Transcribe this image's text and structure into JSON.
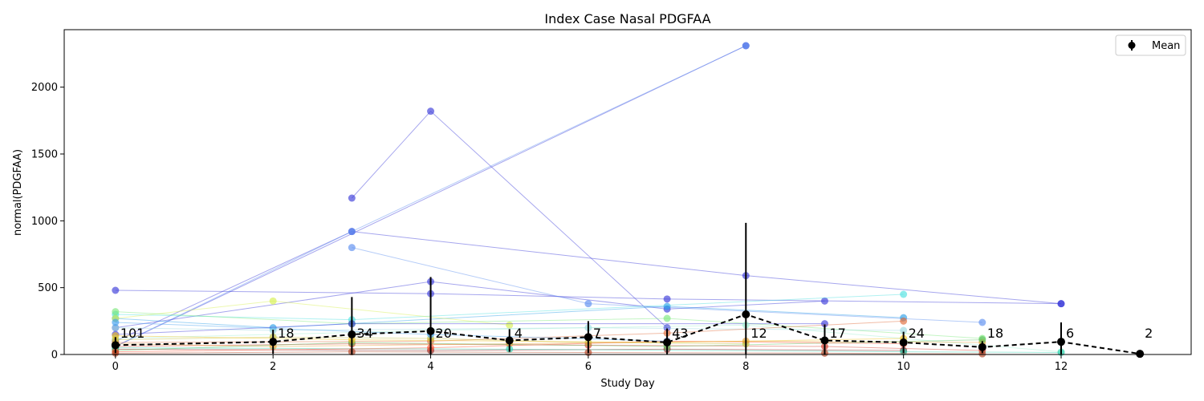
{
  "chart_data": {
    "type": "line",
    "title": "Index Case Nasal PDGFAA",
    "xlabel": "Study Day",
    "ylabel": "normal(PDGFAA)",
    "xlim": [
      -0.65,
      13.65
    ],
    "ylim": [
      0,
      2430
    ],
    "xticks": [
      0,
      2,
      4,
      6,
      8,
      10,
      12
    ],
    "yticks": [
      0,
      500,
      1000,
      1500,
      2000
    ],
    "legend": {
      "position": "top-right",
      "entries": [
        "Mean"
      ]
    },
    "mean": {
      "name": "Mean",
      "x": [
        0,
        2,
        3,
        4,
        5,
        6,
        7,
        8,
        9,
        10,
        11,
        12,
        13
      ],
      "y": [
        70,
        95,
        150,
        175,
        105,
        130,
        90,
        300,
        105,
        90,
        55,
        95,
        5
      ],
      "err": [
        60,
        90,
        280,
        405,
        85,
        120,
        105,
        685,
        120,
        80,
        45,
        145,
        5
      ],
      "counts": [
        "101",
        "18",
        "34",
        "20",
        "4",
        "7",
        "43",
        "12",
        "17",
        "24",
        "18",
        "6",
        "2"
      ]
    },
    "subjects": [
      {
        "color": "#3a3ad9",
        "points": [
          [
            0,
            60
          ],
          [
            8,
            2310
          ]
        ]
      },
      {
        "color": "#3a3ad9",
        "points": [
          [
            0,
            100
          ],
          [
            3,
            920
          ],
          [
            8,
            590
          ],
          [
            12,
            380
          ]
        ]
      },
      {
        "color": "#3a3ad9",
        "points": [
          [
            3,
            1170
          ],
          [
            4,
            1820
          ],
          [
            7,
            200
          ]
        ]
      },
      {
        "color": "#3a3ad9",
        "points": [
          [
            0,
            480
          ],
          [
            4,
            455
          ],
          [
            7,
            415
          ],
          [
            12,
            380
          ]
        ]
      },
      {
        "color": "#3a3ad9",
        "points": [
          [
            0,
            200
          ],
          [
            4,
            545
          ],
          [
            7,
            340
          ],
          [
            9,
            400
          ]
        ]
      },
      {
        "color": "#5a8ef0",
        "points": [
          [
            0,
            60
          ],
          [
            3,
            920
          ],
          [
            8,
            2310
          ]
        ]
      },
      {
        "color": "#5a8ef0",
        "points": [
          [
            3,
            800
          ],
          [
            6,
            380
          ],
          [
            11,
            240
          ]
        ]
      },
      {
        "color": "#2e9fe8",
        "points": [
          [
            0,
            270
          ],
          [
            2,
            200
          ],
          [
            7,
            360
          ],
          [
            10,
            275
          ]
        ]
      },
      {
        "color": "#4fe0e0",
        "points": [
          [
            0,
            300
          ],
          [
            3,
            260
          ],
          [
            10,
            450
          ]
        ]
      },
      {
        "color": "#d6f050",
        "points": [
          [
            0,
            270
          ],
          [
            2,
            400
          ],
          [
            5,
            220
          ]
        ]
      },
      {
        "color": "#7ce87c",
        "points": [
          [
            0,
            320
          ],
          [
            3,
            230
          ],
          [
            7,
            270
          ],
          [
            11,
            120
          ]
        ]
      },
      {
        "color": "#9ad8e0",
        "points": [
          [
            0,
            200
          ],
          [
            2,
            180
          ],
          [
            6,
            200
          ],
          [
            10,
            180
          ]
        ]
      },
      {
        "color": "#3a3ad9",
        "points": [
          [
            0,
            150
          ],
          [
            3,
            230
          ],
          [
            9,
            230
          ]
        ]
      },
      {
        "color": "#a0f0d0",
        "points": [
          [
            0,
            120
          ],
          [
            4,
            180
          ],
          [
            8,
            220
          ],
          [
            12,
            20
          ]
        ]
      },
      {
        "color": "#e06b3a",
        "points": [
          [
            0,
            90
          ],
          [
            4,
            100
          ],
          [
            7,
            160
          ],
          [
            10,
            250
          ]
        ]
      },
      {
        "color": "#d43a2a",
        "points": [
          [
            0,
            60
          ],
          [
            3,
            80
          ],
          [
            6,
            70
          ],
          [
            9,
            60
          ],
          [
            11,
            30
          ]
        ]
      },
      {
        "color": "#e8a030",
        "points": [
          [
            0,
            80
          ],
          [
            2,
            60
          ],
          [
            5,
            80
          ],
          [
            8,
            100
          ],
          [
            11,
            90
          ]
        ]
      },
      {
        "color": "#8a2020",
        "points": [
          [
            0,
            40
          ],
          [
            4,
            30
          ],
          [
            7,
            40
          ],
          [
            10,
            30
          ]
        ]
      },
      {
        "color": "#60c060",
        "points": [
          [
            0,
            30
          ],
          [
            3,
            90
          ],
          [
            7,
            60
          ],
          [
            11,
            110
          ]
        ]
      },
      {
        "color": "#c0c040",
        "points": [
          [
            0,
            110
          ],
          [
            2,
            130
          ],
          [
            4,
            120
          ],
          [
            6,
            90
          ],
          [
            8,
            80
          ]
        ]
      },
      {
        "color": "#30d0b0",
        "points": [
          [
            0,
            50
          ],
          [
            5,
            40
          ],
          [
            10,
            20
          ],
          [
            12,
            15
          ]
        ]
      },
      {
        "color": "#ff5030",
        "points": [
          [
            0,
            20
          ],
          [
            4,
            50
          ],
          [
            7,
            100
          ],
          [
            10,
            80
          ]
        ]
      },
      {
        "color": "#b04020",
        "points": [
          [
            0,
            10
          ],
          [
            3,
            20
          ],
          [
            6,
            15
          ],
          [
            9,
            10
          ],
          [
            11,
            5
          ]
        ]
      },
      {
        "color": "#f0c020",
        "points": [
          [
            0,
            140
          ],
          [
            3,
            110
          ],
          [
            7,
            90
          ],
          [
            10,
            120
          ]
        ]
      },
      {
        "color": "#40a0f0",
        "points": [
          [
            0,
            240
          ],
          [
            4,
            150
          ],
          [
            7,
            100
          ]
        ]
      }
    ]
  }
}
